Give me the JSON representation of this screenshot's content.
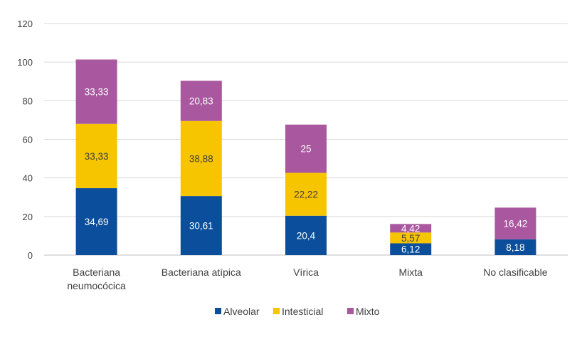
{
  "chart_data": {
    "type": "bar",
    "stacked": true,
    "categories": [
      [
        "Bacteriana",
        "neumocócica"
      ],
      [
        "Bacteriana atípica"
      ],
      [
        "Vírica"
      ],
      [
        "Mixta"
      ],
      [
        "No clasificable"
      ]
    ],
    "series": [
      {
        "name": "Alveolar",
        "color": "#0b4f9c",
        "label_color": "#ffffff",
        "values": [
          34.69,
          30.61,
          20.4,
          6.12,
          8.18
        ],
        "labels": [
          "34,69",
          "30,61",
          "20,4",
          "6,12",
          "8,18"
        ]
      },
      {
        "name": "Intesticial",
        "color": "#f7c400",
        "label_color": "#404040",
        "values": [
          33.33,
          38.88,
          22.22,
          5.57,
          0
        ],
        "labels": [
          "33,33",
          "38,88",
          "22,22",
          "5,57",
          ""
        ]
      },
      {
        "name": "Mixto",
        "color": "#a9579f",
        "label_color": "#ffffff",
        "values": [
          33.33,
          20.83,
          25,
          4.42,
          16.42
        ],
        "labels": [
          "33,33",
          "20,83",
          "25",
          "4,42",
          "16,42"
        ]
      }
    ],
    "yticks": [
      "0",
      "20",
      "40",
      "60",
      "80",
      "100",
      "120"
    ],
    "ylim": [
      0,
      120
    ],
    "grid": true,
    "legend": "bottom"
  }
}
